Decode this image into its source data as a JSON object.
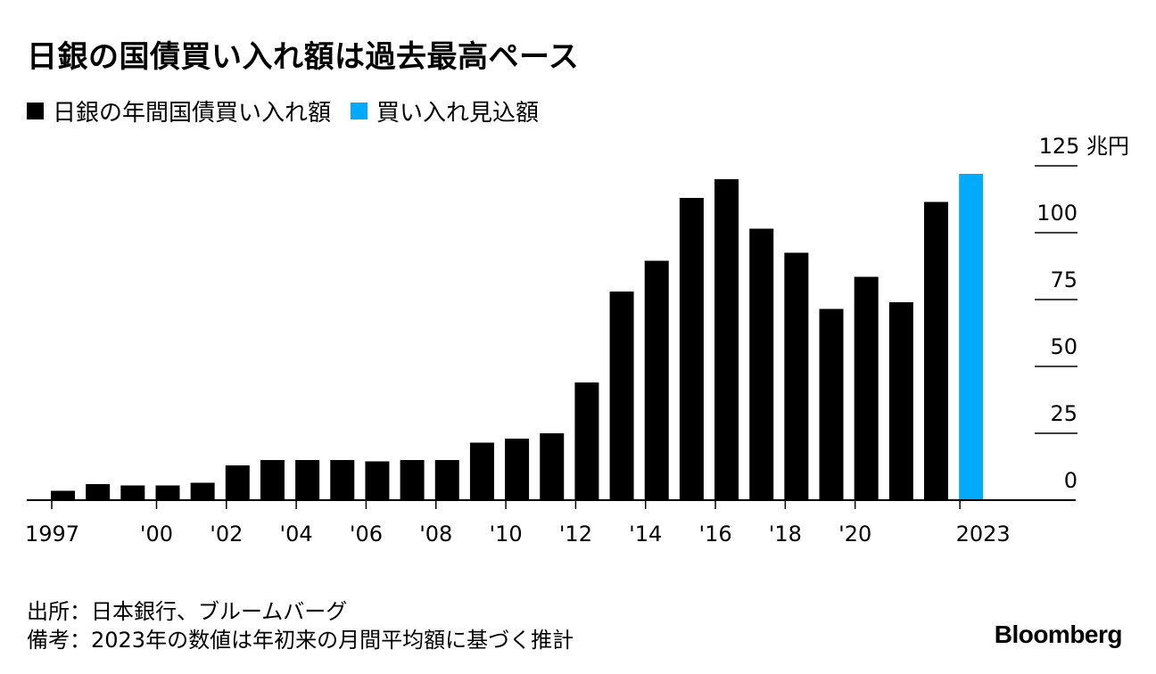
{
  "chart_data": {
    "type": "bar",
    "title": "日銀の国債買い入れ額は過去最高ペース",
    "unit": "兆円",
    "ylim": [
      0,
      125
    ],
    "yticks": [
      0,
      25,
      50,
      75,
      100,
      125
    ],
    "ytick_labels": [
      "0",
      "25",
      "50",
      "75",
      "100",
      "125"
    ],
    "ytick_top_label": "125 兆円",
    "categories": [
      "1997",
      "1998",
      "1999",
      "2000",
      "2001",
      "2002",
      "2003",
      "2004",
      "2005",
      "2006",
      "2007",
      "2008",
      "2009",
      "2010",
      "2011",
      "2012",
      "2013",
      "2014",
      "2015",
      "2016",
      "2017",
      "2018",
      "2019",
      "2020",
      "2021",
      "2022",
      "2023"
    ],
    "series": [
      {
        "name": "日銀の年間国債買い入れ額",
        "color": "#000000",
        "values": [
          3.5,
          6,
          5.5,
          5.5,
          6.5,
          13,
          15,
          15,
          15,
          14.5,
          15,
          15,
          21.5,
          23,
          25,
          44,
          78,
          89.5,
          113,
          120,
          101.5,
          92.5,
          71.5,
          83.5,
          74,
          111.5,
          null
        ]
      },
      {
        "name": "買い入れ見込額",
        "color": "#00aaff",
        "values": [
          null,
          null,
          null,
          null,
          null,
          null,
          null,
          null,
          null,
          null,
          null,
          null,
          null,
          null,
          null,
          null,
          null,
          null,
          null,
          null,
          null,
          null,
          null,
          null,
          null,
          null,
          122
        ]
      }
    ],
    "xtick_labels": [
      {
        "category": "1997",
        "label": "1997"
      },
      {
        "category": "2000",
        "label": "'00"
      },
      {
        "category": "2002",
        "label": "'02"
      },
      {
        "category": "2004",
        "label": "'04"
      },
      {
        "category": "2006",
        "label": "'06"
      },
      {
        "category": "2008",
        "label": "'08"
      },
      {
        "category": "2010",
        "label": "'10"
      },
      {
        "category": "2012",
        "label": "'12"
      },
      {
        "category": "2014",
        "label": "'14"
      },
      {
        "category": "2016",
        "label": "'16"
      },
      {
        "category": "2018",
        "label": "'18"
      },
      {
        "category": "2020",
        "label": "'20"
      },
      {
        "category": "2023",
        "label": "2023"
      }
    ],
    "legend": "top-left",
    "grid": false
  },
  "footnotes": {
    "source": "出所：日本銀行、ブルームバーグ",
    "note": "備考：2023年の数値は年初来の月間平均額に基づく推計"
  },
  "brand": "Bloomberg"
}
